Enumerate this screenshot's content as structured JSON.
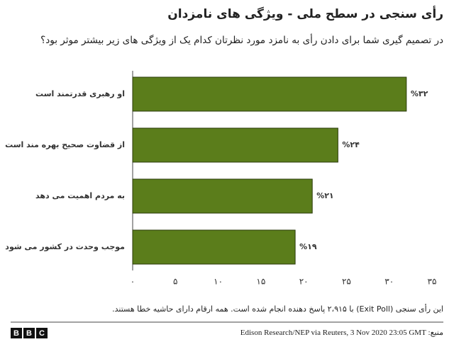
{
  "chart_data": {
    "type": "hbar",
    "title": "رأی سنجی در سطح ملی - ویژگی های نامزدان",
    "subtitle": "در تصمیم گیری شما برای دادن رأی به نامزد مورد نظرتان کدام یک از ویژگی های زیر بیشتر موثر بود؟",
    "categories": [
      "او رهبری قدرتمند است",
      "از قضاوت صحیح بهره مند است",
      "به مردم اهمیت می دهد",
      "موجب وحدت در کشور می شود"
    ],
    "values": [
      32,
      24,
      21,
      19
    ],
    "value_labels": [
      "%۳۲",
      "%۲۴",
      "%۲۱",
      "%۱۹"
    ],
    "color": "#5b7d1b",
    "xlim": [
      0,
      35
    ],
    "xticks": [
      {
        "value": 0,
        "label": "۰"
      },
      {
        "value": 5,
        "label": "۵"
      },
      {
        "value": 10,
        "label": "۱۰"
      },
      {
        "value": 15,
        "label": "۱۵"
      },
      {
        "value": 20,
        "label": "۲۰"
      },
      {
        "value": 25,
        "label": "۲۵"
      },
      {
        "value": 30,
        "label": "۳۰"
      },
      {
        "value": 35,
        "label": "۳۵"
      }
    ],
    "grid": false,
    "note": "این رأی سنجی (Exit Poll) با ۲،۹۱۵ پاسخ دهنده انجام شده است. همه ارقام دارای حاشیه خطا هستند.",
    "source": "منبع: Edison Research/NEP via Reuters, 3 Nov 2020 23:05 GMT",
    "logo": "BBC"
  }
}
